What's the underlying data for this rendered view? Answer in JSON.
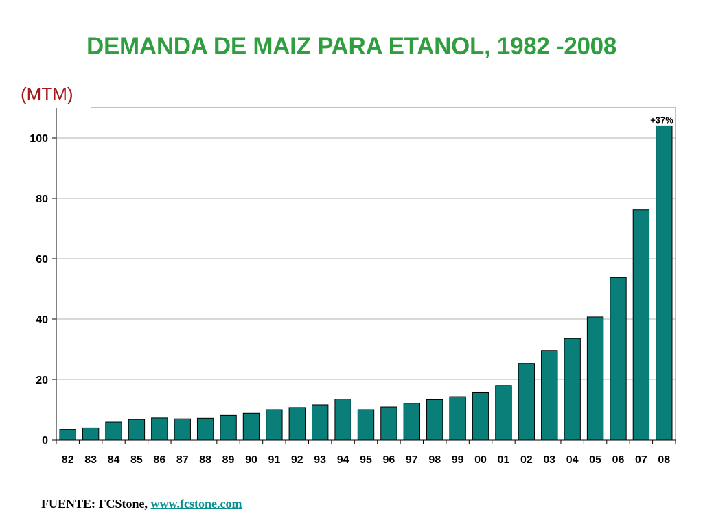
{
  "page": {
    "source_prefix": "FUENTE: FCStone, ",
    "source_link": "www.fcstone.com"
  },
  "colors": {
    "title": "#2e9e3f",
    "unit": "#a01818",
    "bar_fill": "#0a7f7a",
    "bar_stroke": "#000000",
    "grid": "#b0b0b0",
    "link": "#0a8f8f"
  },
  "chart_data": {
    "type": "bar",
    "title": "DEMANDA DE MAIZ PARA ETANOL, 1982 -2008",
    "ylabel": "(MTM)",
    "xlabel": "",
    "ylim": [
      0,
      110
    ],
    "yticks": [
      0,
      20,
      40,
      60,
      80,
      100
    ],
    "grid": true,
    "categories": [
      "82",
      "83",
      "84",
      "85",
      "86",
      "87",
      "88",
      "89",
      "90",
      "91",
      "92",
      "93",
      "94",
      "95",
      "96",
      "97",
      "98",
      "99",
      "00",
      "01",
      "02",
      "03",
      "04",
      "05",
      "06",
      "07",
      "08"
    ],
    "values": [
      3.5,
      4.0,
      5.9,
      6.8,
      7.3,
      7.0,
      7.2,
      8.1,
      8.8,
      10.0,
      10.7,
      11.6,
      13.5,
      10.0,
      10.9,
      12.1,
      13.3,
      14.3,
      15.8,
      18.0,
      25.3,
      29.6,
      33.6,
      40.7,
      53.8,
      76.2,
      104.0
    ],
    "annotations": [
      {
        "category": "08",
        "text": "+37%"
      }
    ]
  }
}
